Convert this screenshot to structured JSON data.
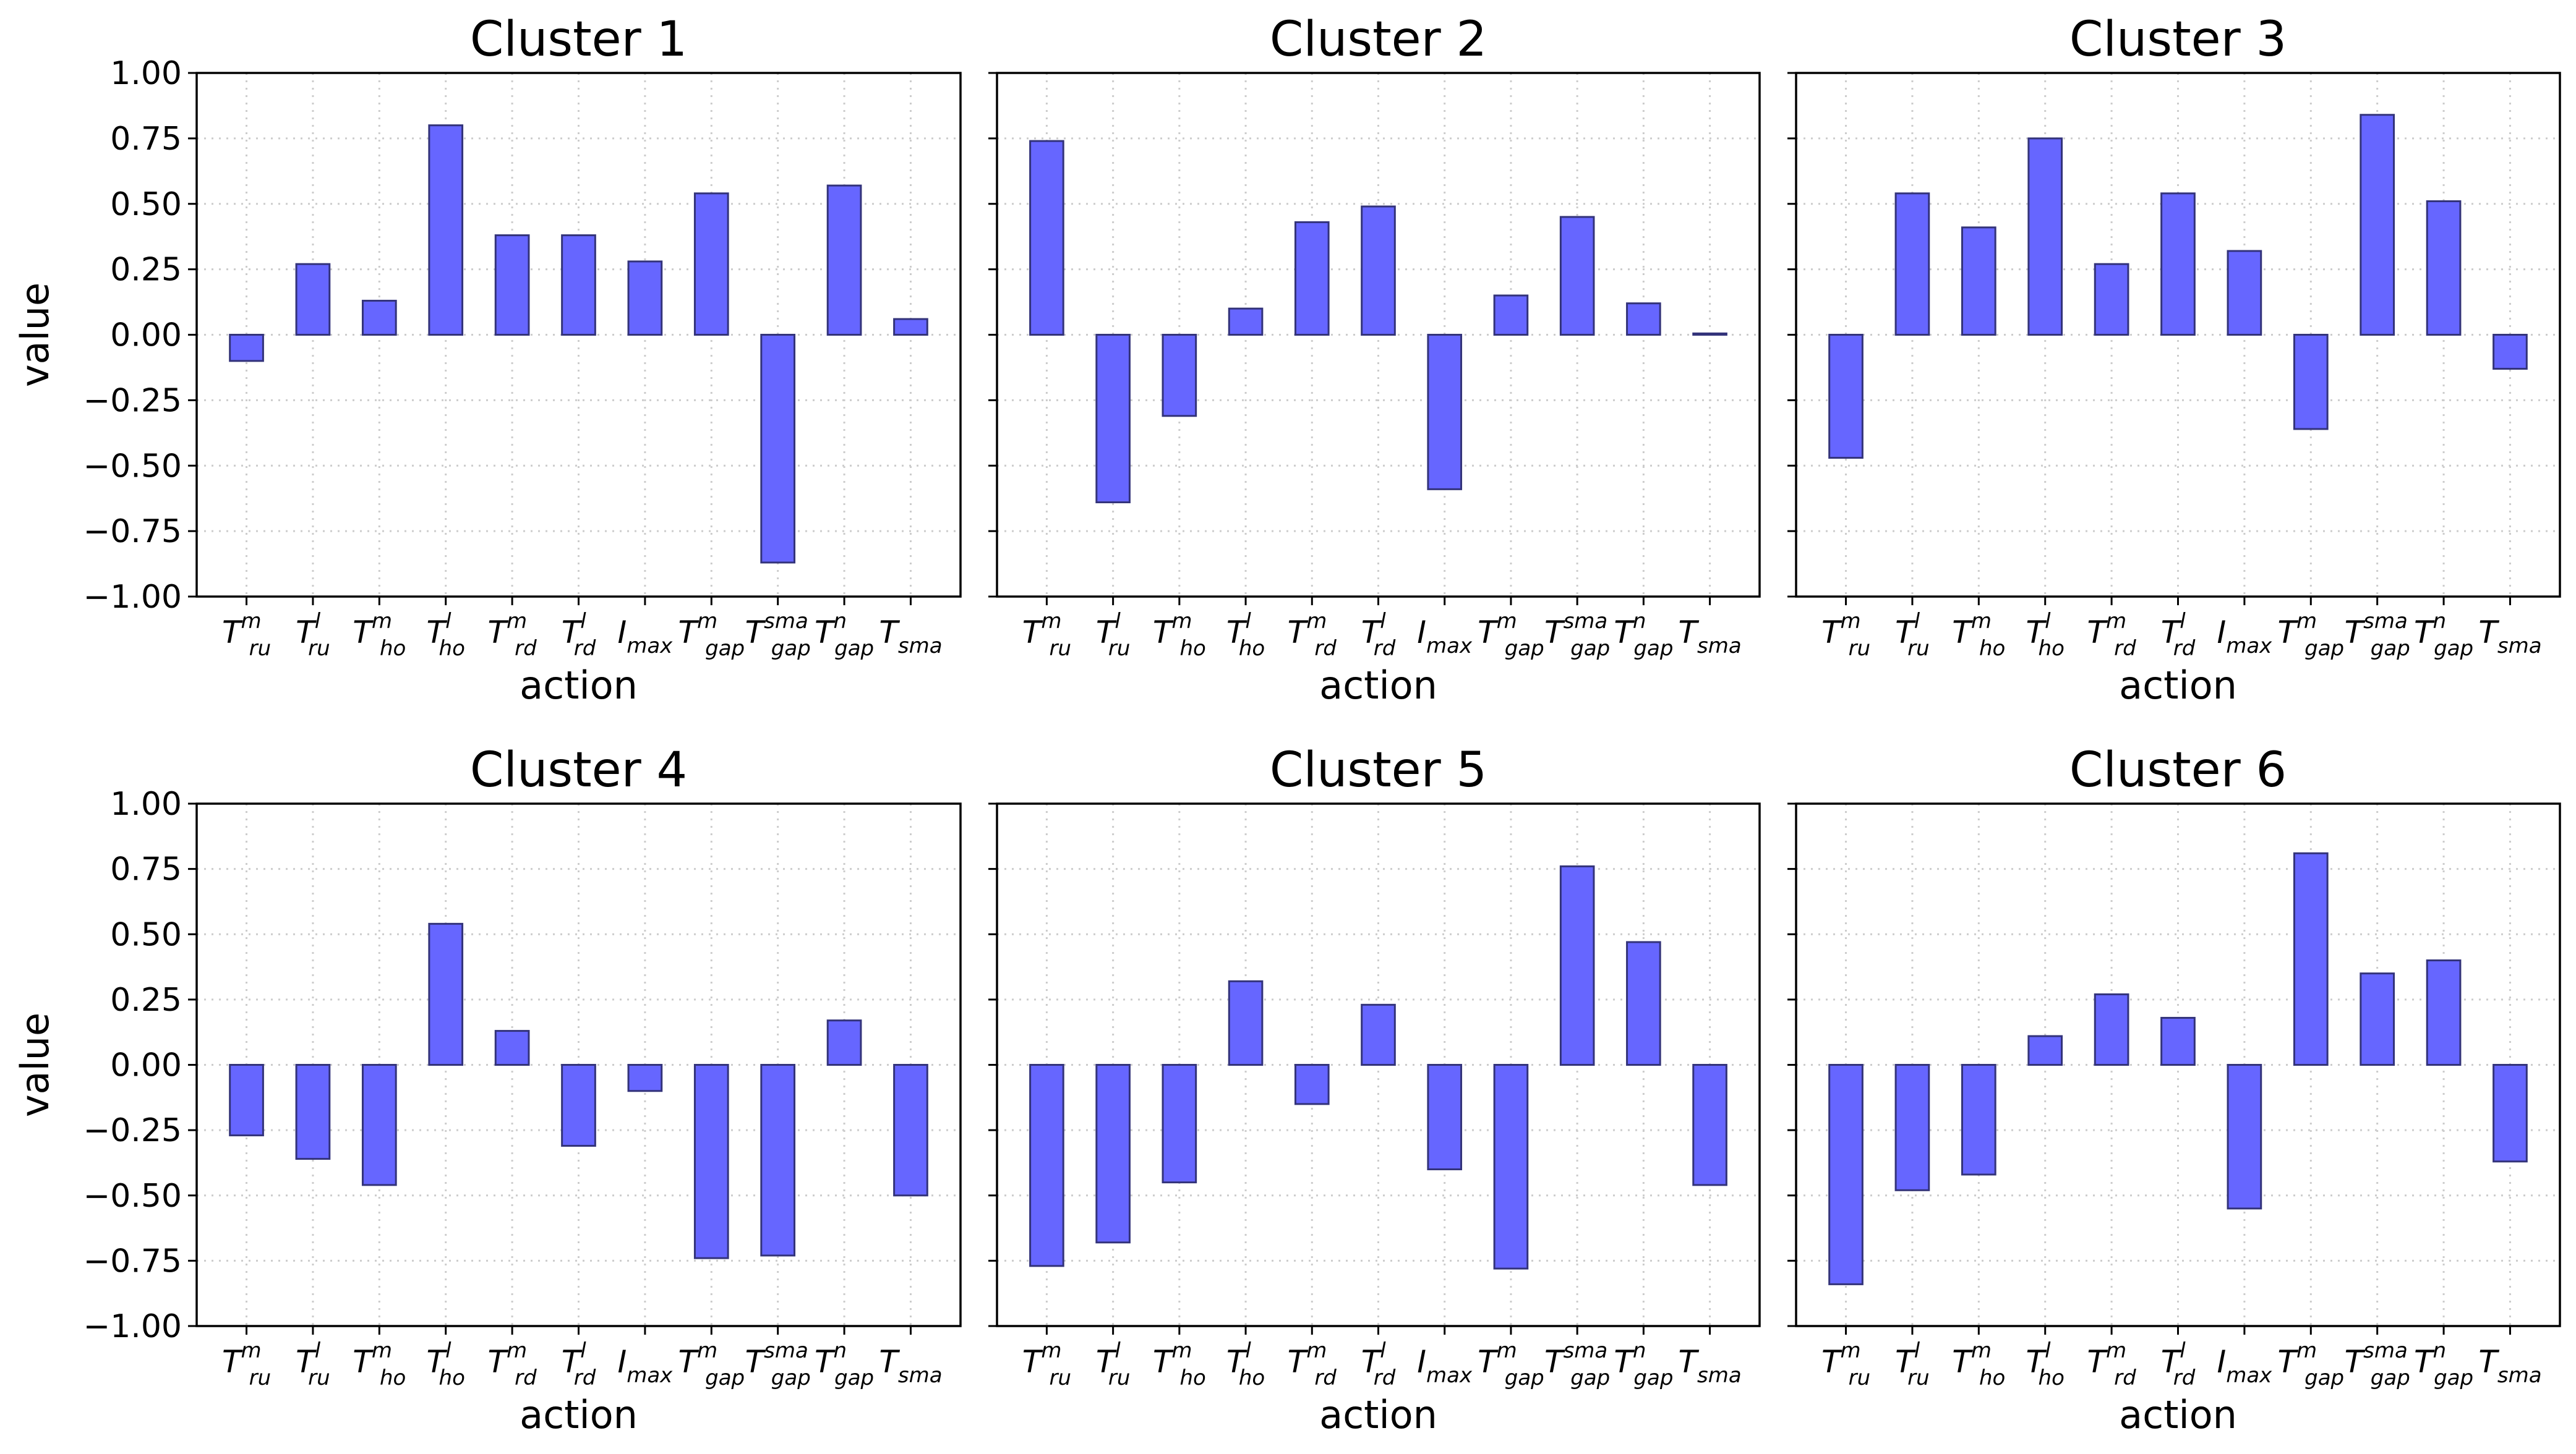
{
  "figure": {
    "bar_color": "#6666ff",
    "bar_edge_color": "#33337a",
    "grid_color": "#cccccc"
  },
  "chart_data": [
    {
      "type": "bar",
      "title": "Cluster 1",
      "xlabel": "action",
      "ylabel": "value",
      "ylim": [
        -1.0,
        1.0
      ],
      "yticks": [
        "−1.00",
        "−0.75",
        "−0.50",
        "−0.25",
        "0.00",
        "0.25",
        "0.50",
        "0.75",
        "1.00"
      ],
      "grid": true,
      "categories": [
        "T_ru^m",
        "T_ru^l",
        "T_ho^m",
        "T_ho^l",
        "T_rd^m",
        "T_rd^l",
        "I_max",
        "T_gap^m",
        "T_gap^sma",
        "T_gap^n",
        "T_sma"
      ],
      "values": [
        -0.1,
        0.27,
        0.13,
        0.8,
        0.38,
        0.38,
        0.28,
        0.54,
        -0.87,
        0.57,
        0.06
      ]
    },
    {
      "type": "bar",
      "title": "Cluster 2",
      "xlabel": "action",
      "ylabel": "",
      "ylim": [
        -1.0,
        1.0
      ],
      "yticks": [],
      "grid": true,
      "categories": [
        "T_ru^m",
        "T_ru^l",
        "T_ho^m",
        "T_ho^l",
        "T_rd^m",
        "T_rd^l",
        "I_max",
        "T_gap^m",
        "T_gap^sma",
        "T_gap^n",
        "T_sma"
      ],
      "values": [
        0.74,
        -0.64,
        -0.31,
        0.1,
        0.43,
        0.49,
        -0.59,
        0.15,
        0.45,
        0.12,
        0.005
      ]
    },
    {
      "type": "bar",
      "title": "Cluster 3",
      "xlabel": "action",
      "ylabel": "",
      "ylim": [
        -1.0,
        1.0
      ],
      "yticks": [],
      "grid": true,
      "categories": [
        "T_ru^m",
        "T_ru^l",
        "T_ho^m",
        "T_ho^l",
        "T_rd^m",
        "T_rd^l",
        "I_max",
        "T_gap^m",
        "T_gap^sma",
        "T_gap^n",
        "T_sma"
      ],
      "values": [
        -0.47,
        0.54,
        0.41,
        0.75,
        0.27,
        0.54,
        0.32,
        -0.36,
        0.84,
        0.51,
        -0.13
      ]
    },
    {
      "type": "bar",
      "title": "Cluster 4",
      "xlabel": "action",
      "ylabel": "value",
      "ylim": [
        -1.0,
        1.0
      ],
      "yticks": [
        "−1.00",
        "−0.75",
        "−0.50",
        "−0.25",
        "0.00",
        "0.25",
        "0.50",
        "0.75",
        "1.00"
      ],
      "grid": true,
      "categories": [
        "T_ru^m",
        "T_ru^l",
        "T_ho^m",
        "T_ho^l",
        "T_rd^m",
        "T_rd^l",
        "I_max",
        "T_gap^m",
        "T_gap^sma",
        "T_gap^n",
        "T_sma"
      ],
      "values": [
        -0.27,
        -0.36,
        -0.46,
        0.54,
        0.13,
        -0.31,
        -0.1,
        -0.74,
        -0.73,
        0.17,
        -0.5
      ]
    },
    {
      "type": "bar",
      "title": "Cluster 5",
      "xlabel": "action",
      "ylabel": "",
      "ylim": [
        -1.0,
        1.0
      ],
      "yticks": [],
      "grid": true,
      "categories": [
        "T_ru^m",
        "T_ru^l",
        "T_ho^m",
        "T_ho^l",
        "T_rd^m",
        "T_rd^l",
        "I_max",
        "T_gap^m",
        "T_gap^sma",
        "T_gap^n",
        "T_sma"
      ],
      "values": [
        -0.77,
        -0.68,
        -0.45,
        0.32,
        -0.15,
        0.23,
        -0.4,
        -0.78,
        0.76,
        0.47,
        -0.46
      ]
    },
    {
      "type": "bar",
      "title": "Cluster 6",
      "xlabel": "action",
      "ylabel": "",
      "ylim": [
        -1.0,
        1.0
      ],
      "yticks": [],
      "grid": true,
      "categories": [
        "T_ru^m",
        "T_ru^l",
        "T_ho^m",
        "T_ho^l",
        "T_rd^m",
        "T_rd^l",
        "I_max",
        "T_gap^m",
        "T_gap^sma",
        "T_gap^n",
        "T_sma"
      ],
      "values": [
        -0.84,
        -0.48,
        -0.42,
        0.11,
        0.27,
        0.18,
        -0.55,
        0.81,
        0.35,
        0.4,
        -0.37
      ]
    }
  ]
}
